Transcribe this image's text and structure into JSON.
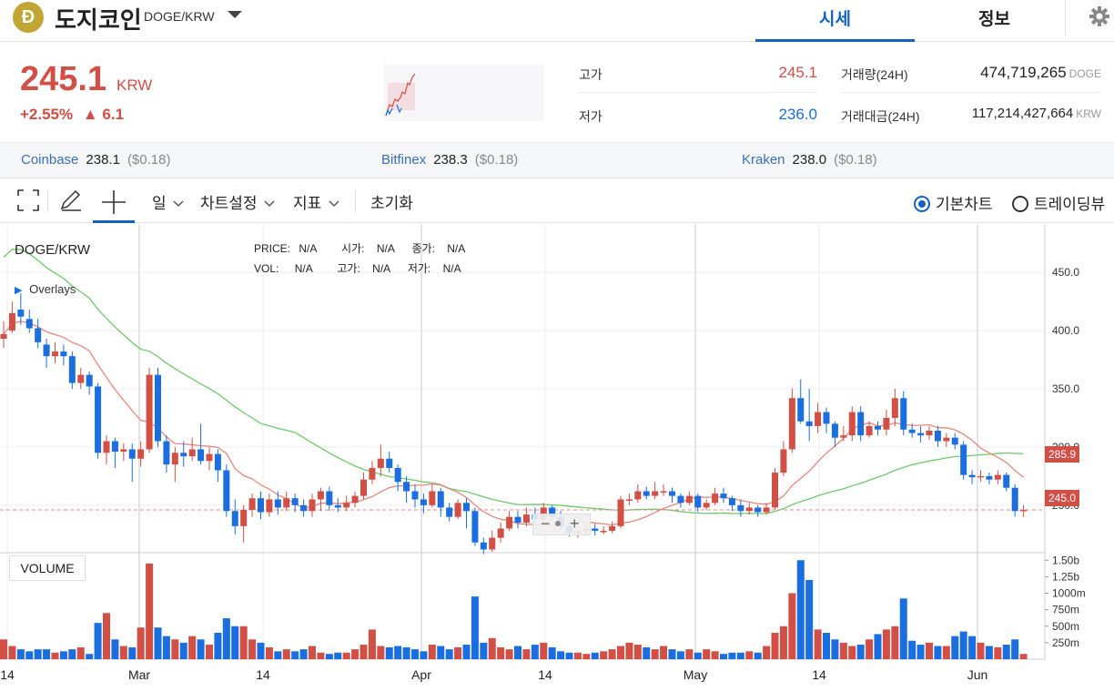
{
  "header": {
    "coin_symbol_letter": "Ð",
    "coin_name": "도지코인",
    "pair": "DOGE/KRW",
    "tabs": [
      {
        "label": "시세"
      },
      {
        "label": "정보"
      }
    ]
  },
  "price": {
    "current": "245.1",
    "unit": "KRW",
    "change_pct": "+2.55%",
    "change_abs": "▲ 6.1"
  },
  "stats": {
    "high_label": "고가",
    "high_value": "245.1",
    "low_label": "저가",
    "low_value": "236.0",
    "volume_label": "거래량(24H)",
    "volume_value": "474,719,265",
    "volume_unit": "DOGE",
    "amount_label": "거래대금(24H)",
    "amount_value": "117,214,427,664",
    "amount_unit": "KRW"
  },
  "exchanges": [
    {
      "name": "Coinbase",
      "price": "238.1",
      "usd": "($0.18)"
    },
    {
      "name": "Bitfinex",
      "price": "238.3",
      "usd": "($0.18)"
    },
    {
      "name": "Kraken",
      "price": "238.0",
      "usd": "($0.18)"
    }
  ],
  "toolbar": {
    "period": "일",
    "chart_settings": "차트설정",
    "indicators": "지표",
    "reset": "초기화",
    "basic_chart": "기본차트",
    "tradingview": "트레이딩뷰"
  },
  "chart": {
    "title": "DOGE/KRW",
    "overlays": "Overlays",
    "volume_label": "VOLUME",
    "ohlc": {
      "price_label": "PRICE:",
      "price_val": "N/A",
      "open_label": "시가:",
      "open_val": "N/A",
      "close_label": "종가:",
      "close_val": "N/A",
      "vol_label": "VOL:",
      "vol_val": "N/A",
      "high_label": "고가:",
      "high_val": "N/A",
      "low_label": "저가:",
      "low_val": "N/A"
    },
    "ma_tag": "285.9",
    "price_tag": "245.0",
    "colors": {
      "up": "#d24f45",
      "down": "#1a6ee0",
      "ma_short": "#e8887c",
      "ma_long": "#6ec96a",
      "grid": "#eeeeee"
    }
  },
  "chart_data": {
    "type": "candlestick",
    "y_ticks": [
      "450.0",
      "400.0",
      "350.0",
      "300.0",
      "250.0"
    ],
    "vol_ticks": [
      "1.50b",
      "1.25b",
      "1000m",
      "750m",
      "500m",
      "250m"
    ],
    "x_ticks": [
      "14",
      "Mar",
      "14",
      "Apr",
      "14",
      "May",
      "14",
      "Jun"
    ],
    "ylim": [
      210,
      490
    ],
    "vol_max": 1.6,
    "candles": [
      [
        393,
        397,
        408,
        385
      ],
      [
        400,
        415,
        425,
        398
      ],
      [
        418,
        412,
        432,
        405
      ],
      [
        410,
        402,
        418,
        398
      ],
      [
        402,
        390,
        410,
        385
      ],
      [
        388,
        378,
        393,
        368
      ],
      [
        378,
        382,
        390,
        372
      ],
      [
        382,
        378,
        388,
        370
      ],
      [
        378,
        355,
        382,
        350
      ],
      [
        355,
        362,
        368,
        350
      ],
      [
        362,
        352,
        365,
        345
      ],
      [
        352,
        295,
        355,
        290
      ],
      [
        295,
        305,
        310,
        285
      ],
      [
        305,
        296,
        308,
        282
      ],
      [
        296,
        298,
        303,
        288
      ],
      [
        298,
        290,
        303,
        270
      ],
      [
        290,
        298,
        305,
        283
      ],
      [
        298,
        362,
        368,
        295
      ],
      [
        362,
        305,
        368,
        300
      ],
      [
        305,
        285,
        310,
        278
      ],
      [
        285,
        295,
        300,
        270
      ],
      [
        295,
        292,
        305,
        283
      ],
      [
        292,
        298,
        308,
        288
      ],
      [
        298,
        288,
        320,
        285
      ],
      [
        288,
        294,
        300,
        280
      ],
      [
        294,
        280,
        298,
        270
      ],
      [
        280,
        245,
        285,
        240
      ],
      [
        245,
        232,
        255,
        225
      ],
      [
        232,
        246,
        250,
        218
      ],
      [
        246,
        256,
        260,
        240
      ],
      [
        256,
        244,
        262,
        238
      ],
      [
        244,
        255,
        260,
        240
      ],
      [
        255,
        248,
        262,
        242
      ],
      [
        248,
        256,
        262,
        245
      ],
      [
        256,
        250,
        260,
        244
      ],
      [
        250,
        245,
        255,
        240
      ],
      [
        245,
        255,
        260,
        240
      ],
      [
        255,
        262,
        265,
        245
      ],
      [
        262,
        250,
        266,
        245
      ],
      [
        250,
        248,
        256,
        244
      ],
      [
        248,
        252,
        258,
        245
      ],
      [
        252,
        258,
        262,
        248
      ],
      [
        258,
        272,
        278,
        255
      ],
      [
        272,
        282,
        288,
        268
      ],
      [
        282,
        290,
        302,
        275
      ],
      [
        290,
        282,
        296,
        278
      ],
      [
        282,
        270,
        285,
        262
      ],
      [
        270,
        262,
        275,
        252
      ],
      [
        262,
        255,
        268,
        248
      ],
      [
        255,
        250,
        260,
        243
      ],
      [
        250,
        262,
        268,
        248
      ],
      [
        262,
        248,
        265,
        240
      ],
      [
        248,
        240,
        252,
        236
      ],
      [
        240,
        252,
        255,
        238
      ],
      [
        252,
        245,
        256,
        230
      ],
      [
        245,
        218,
        248,
        215
      ],
      [
        218,
        212,
        222,
        208
      ],
      [
        212,
        222,
        228,
        210
      ],
      [
        222,
        230,
        235,
        218
      ],
      [
        230,
        240,
        245,
        228
      ],
      [
        240,
        235,
        245,
        230
      ],
      [
        235,
        242,
        248,
        232
      ],
      [
        242,
        238,
        248,
        234
      ],
      [
        238,
        248,
        252,
        236
      ],
      [
        248,
        240,
        250,
        238
      ],
      [
        240,
        232,
        245,
        229
      ],
      [
        232,
        226,
        236,
        223
      ],
      [
        226,
        228,
        232,
        222
      ],
      [
        228,
        230,
        235,
        225
      ],
      [
        230,
        228,
        234,
        224
      ],
      [
        228,
        228,
        232,
        225
      ],
      [
        228,
        232,
        236,
        226
      ],
      [
        232,
        255,
        258,
        230
      ],
      [
        255,
        255,
        260,
        250
      ],
      [
        255,
        262,
        268,
        252
      ],
      [
        262,
        258,
        266,
        255
      ],
      [
        258,
        262,
        270,
        255
      ],
      [
        262,
        262,
        268,
        258
      ],
      [
        262,
        258,
        265,
        252
      ],
      [
        258,
        252,
        260,
        248
      ],
      [
        252,
        258,
        262,
        250
      ],
      [
        258,
        248,
        260,
        244
      ],
      [
        248,
        252,
        255,
        246
      ],
      [
        252,
        260,
        265,
        250
      ],
      [
        260,
        256,
        265,
        252
      ],
      [
        256,
        250,
        258,
        245
      ],
      [
        250,
        245,
        255,
        240
      ],
      [
        245,
        248,
        252,
        242
      ],
      [
        248,
        244,
        250,
        240
      ],
      [
        244,
        248,
        252,
        242
      ],
      [
        248,
        278,
        282,
        246
      ],
      [
        278,
        298,
        305,
        275
      ],
      [
        298,
        342,
        350,
        295
      ],
      [
        342,
        322,
        358,
        320
      ],
      [
        322,
        318,
        350,
        305
      ],
      [
        318,
        330,
        338,
        312
      ],
      [
        330,
        320,
        334,
        312
      ],
      [
        320,
        308,
        322,
        300
      ],
      [
        308,
        310,
        318,
        305
      ],
      [
        310,
        330,
        335,
        305
      ],
      [
        330,
        310,
        335,
        305
      ],
      [
        310,
        318,
        322,
        308
      ],
      [
        318,
        315,
        322,
        310
      ],
      [
        315,
        325,
        332,
        310
      ],
      [
        325,
        342,
        350,
        318
      ],
      [
        342,
        315,
        348,
        310
      ],
      [
        315,
        312,
        320,
        308
      ],
      [
        312,
        310,
        318,
        304
      ],
      [
        310,
        314,
        318,
        306
      ],
      [
        314,
        305,
        318,
        300
      ],
      [
        305,
        308,
        312,
        300
      ],
      [
        308,
        302,
        312,
        298
      ],
      [
        302,
        276,
        305,
        272
      ],
      [
        276,
        274,
        280,
        268
      ],
      [
        274,
        275,
        280,
        270
      ],
      [
        275,
        272,
        278,
        268
      ],
      [
        272,
        276,
        280,
        268
      ],
      [
        276,
        265,
        278,
        262
      ],
      [
        265,
        245,
        268,
        240
      ],
      [
        245,
        246,
        250,
        240
      ]
    ],
    "volumes": [
      0.3,
      0.2,
      0.15,
      0.12,
      0.15,
      0.15,
      0.1,
      0.12,
      0.15,
      0.18,
      0.08,
      0.55,
      0.7,
      0.3,
      0.2,
      0.18,
      0.48,
      1.45,
      0.48,
      0.35,
      0.3,
      0.25,
      0.35,
      0.3,
      0.22,
      0.4,
      0.62,
      0.5,
      0.5,
      0.3,
      0.25,
      0.18,
      0.12,
      0.15,
      0.12,
      0.15,
      0.2,
      0.1,
      0.08,
      0.1,
      0.1,
      0.15,
      0.22,
      0.45,
      0.2,
      0.18,
      0.2,
      0.18,
      0.15,
      0.12,
      0.22,
      0.2,
      0.15,
      0.18,
      0.22,
      0.95,
      0.25,
      0.32,
      0.18,
      0.15,
      0.2,
      0.15,
      0.22,
      0.25,
      0.18,
      0.12,
      0.1,
      0.1,
      0.08,
      0.1,
      0.12,
      0.15,
      0.2,
      0.25,
      0.22,
      0.18,
      0.15,
      0.2,
      0.15,
      0.12,
      0.15,
      0.1,
      0.15,
      0.12,
      0.08,
      0.1,
      0.1,
      0.12,
      0.1,
      0.2,
      0.4,
      0.5,
      1.0,
      1.5,
      1.2,
      0.45,
      0.4,
      0.3,
      0.25,
      0.2,
      0.22,
      0.3,
      0.38,
      0.45,
      0.5,
      0.92,
      0.28,
      0.22,
      0.25,
      0.2,
      0.2,
      0.35,
      0.42,
      0.35,
      0.25,
      0.2,
      0.18,
      0.22,
      0.3,
      0.08
    ]
  }
}
